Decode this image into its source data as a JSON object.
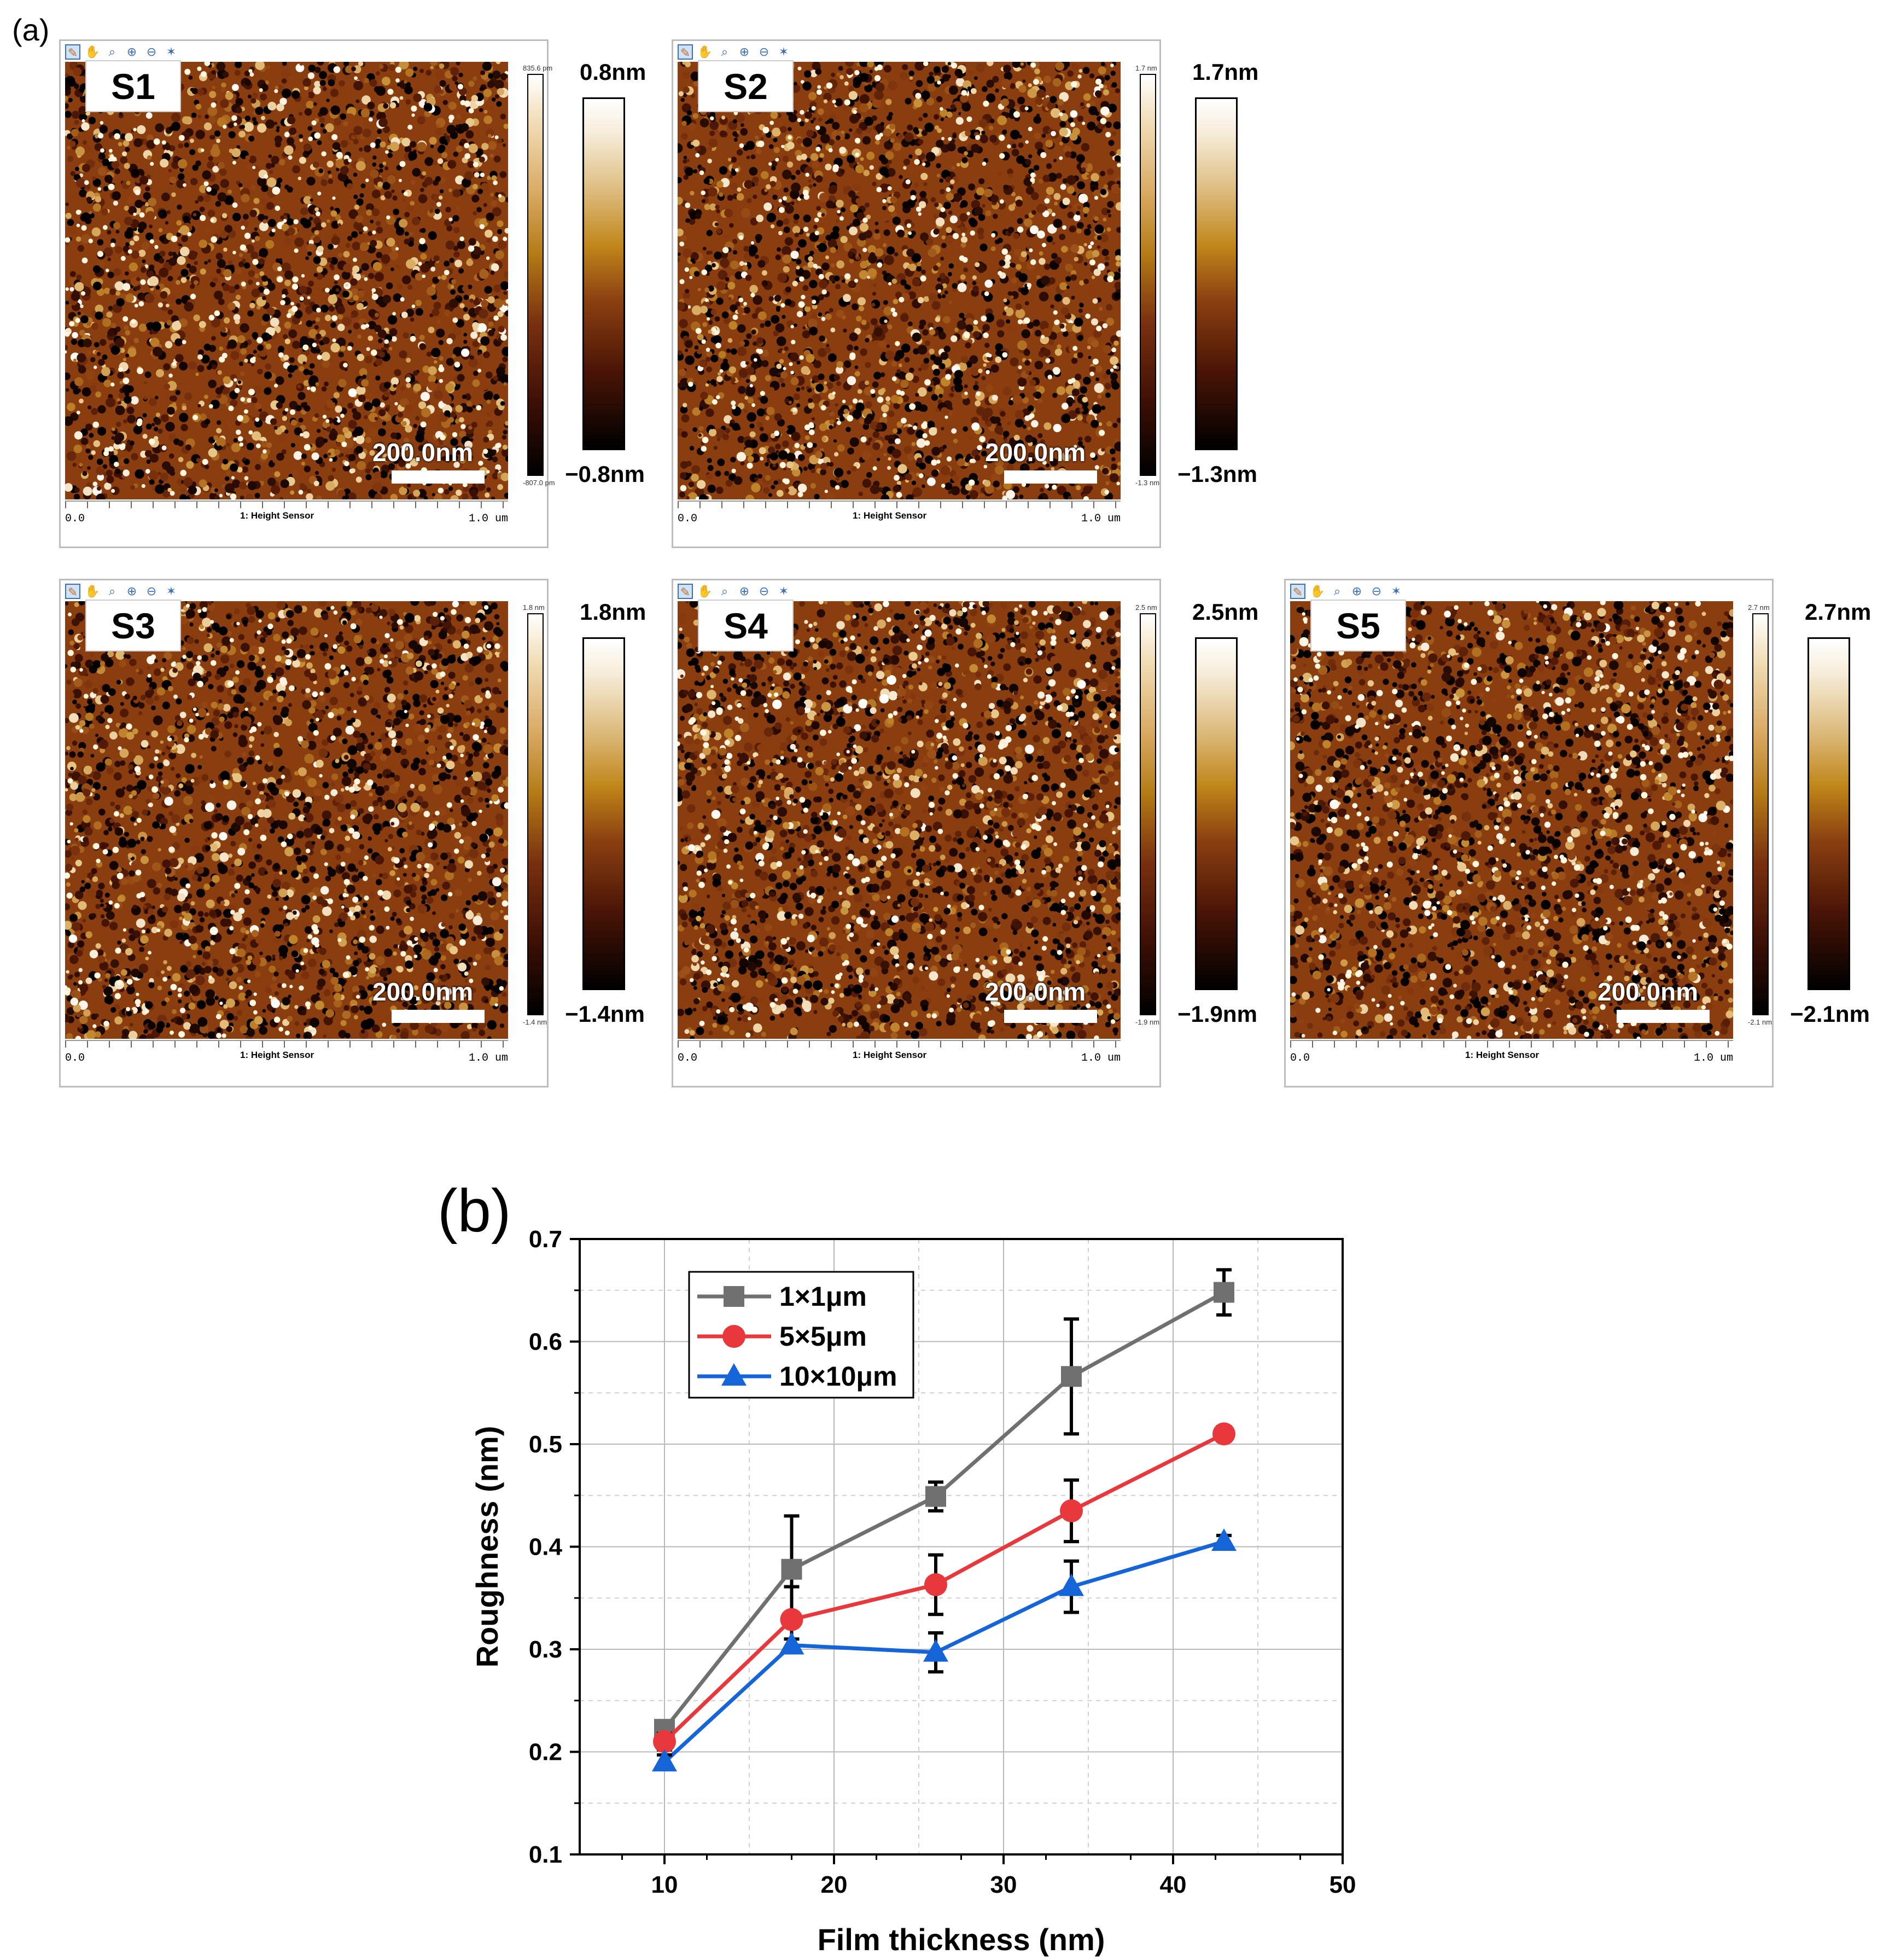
{
  "panel_a": {
    "label": "(a)",
    "toolbar_icons": [
      "modify-icon",
      "hand-icon",
      "zoom-icon",
      "zoom-in-icon",
      "zoom-out-icon",
      "tilt-icon"
    ],
    "x_start": "0.0",
    "x_end": "1.0 um",
    "channel": "1: Height Sensor",
    "scale_bar": "200.0nm",
    "colors": {
      "low": "#000000",
      "mid": "#b37a15",
      "high": "#ffffff"
    },
    "samples": [
      {
        "name": "S1",
        "cbar_max": "0.8nm",
        "cbar_min": "−0.8nm",
        "small_max": "835.6 pm",
        "small_min": "-807.0 pm",
        "seed": 11
      },
      {
        "name": "S2",
        "cbar_max": "1.7nm",
        "cbar_min": "−1.3nm",
        "small_max": "1.7 nm",
        "small_min": "-1.3 nm",
        "seed": 23
      },
      {
        "name": "S3",
        "cbar_max": "1.8nm",
        "cbar_min": "−1.4nm",
        "small_max": "1.8 nm",
        "small_min": "-1.4 nm",
        "seed": 37
      },
      {
        "name": "S4",
        "cbar_max": "2.5nm",
        "cbar_min": "−1.9nm",
        "small_max": "2.5 nm",
        "small_min": "-1.9 nm",
        "seed": 41
      },
      {
        "name": "S5",
        "cbar_max": "2.7nm",
        "cbar_min": "−2.1nm",
        "small_max": "2.7 nm",
        "small_min": "-2.1 nm",
        "seed": 53
      }
    ]
  },
  "panel_b": {
    "label": "(b)"
  },
  "chart_data": {
    "type": "line",
    "title": "",
    "xlabel": "Film thickness (nm)",
    "ylabel": "Roughness (nm)",
    "xlim": [
      5,
      50
    ],
    "ylim": [
      0.1,
      0.7
    ],
    "xticks": [
      10,
      20,
      30,
      40,
      50
    ],
    "yticks": [
      0.1,
      0.2,
      0.3,
      0.4,
      0.5,
      0.6,
      0.7
    ],
    "grid": true,
    "legend_position": "top-left",
    "x": [
      10,
      17.5,
      26,
      34,
      43
    ],
    "series": [
      {
        "name": "1×1μm",
        "color": "#707070",
        "marker": "square",
        "values": [
          0.222,
          0.378,
          0.449,
          0.566,
          0.648
        ],
        "errors": [
          0.006,
          0.052,
          0.014,
          0.056,
          0.022
        ]
      },
      {
        "name": "5×5μm",
        "color": "#e8383c",
        "marker": "circle",
        "values": [
          0.21,
          0.329,
          0.363,
          0.435,
          0.51
        ],
        "errors": [
          0.008,
          0.032,
          0.029,
          0.03,
          0.007
        ]
      },
      {
        "name": "10×10μm",
        "color": "#1565d8",
        "marker": "triangle",
        "values": [
          0.19,
          0.304,
          0.297,
          0.361,
          0.405
        ],
        "errors": [
          0.007,
          0.006,
          0.019,
          0.025,
          0.006
        ]
      }
    ]
  }
}
